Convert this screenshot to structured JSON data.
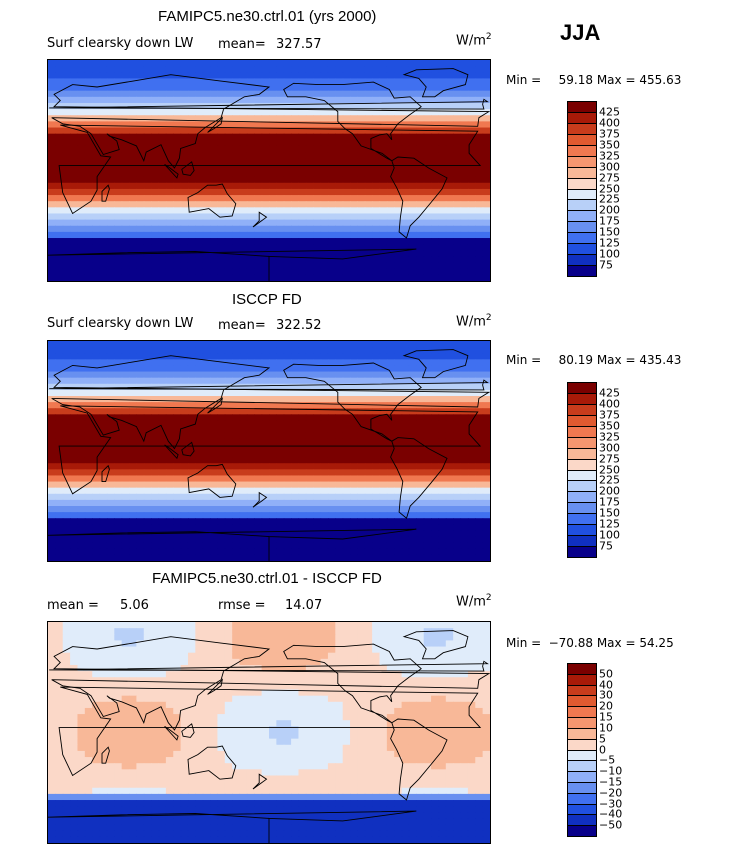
{
  "season": "JJA",
  "units": {
    "base": "W/m",
    "exp": "2"
  },
  "colors": {
    "positive_scale": [
      "#08008a",
      "#1030c0",
      "#2050e0",
      "#4070f0",
      "#6890f0",
      "#90b0f8",
      "#b8d0f8",
      "#e0ecfa",
      "#fbd8c8",
      "#f8b898",
      "#f59670",
      "#f07850",
      "#e05a30",
      "#c83c1c",
      "#a81a08",
      "#7a0000"
    ],
    "diff_scale": [
      "#08008a",
      "#1030c0",
      "#2050e0",
      "#4070f0",
      "#6890f0",
      "#90b0f8",
      "#b8d0f8",
      "#e0ecfa",
      "#fbd8c8",
      "#f8b898",
      "#f59670",
      "#f07850",
      "#e05a30",
      "#c83c1c",
      "#a81a08",
      "#7a0000"
    ],
    "land_line": "#000000"
  },
  "chart_data": [
    {
      "type": "heatmap",
      "title": "FAMIPC5.ne30.ctrl.01 (yrs 2000)",
      "variable": "Surf clearsky down LW",
      "stat_label": "mean=",
      "stat_value": "327.57",
      "min_label": "Min =",
      "min": "59.18",
      "max_label": "Max =",
      "max": "455.63",
      "levels": [
        75,
        100,
        125,
        150,
        175,
        200,
        225,
        250,
        275,
        300,
        325,
        350,
        375,
        400,
        425
      ],
      "levels_text": [
        "75",
        "100",
        "125",
        "150",
        "175",
        "200",
        "225",
        "250",
        "275",
        "300",
        "325",
        "350",
        "375",
        "400",
        "425"
      ]
    },
    {
      "type": "heatmap",
      "title": "ISCCP FD",
      "variable": "Surf clearsky down LW",
      "stat_label": "mean=",
      "stat_value": "322.52",
      "min_label": "Min =",
      "min": "80.19",
      "max_label": "Max =",
      "max": "435.43",
      "levels": [
        75,
        100,
        125,
        150,
        175,
        200,
        225,
        250,
        275,
        300,
        325,
        350,
        375,
        400,
        425
      ],
      "levels_text": [
        "75",
        "100",
        "125",
        "150",
        "175",
        "200",
        "225",
        "250",
        "275",
        "300",
        "325",
        "350",
        "375",
        "400",
        "425"
      ]
    },
    {
      "type": "heatmap",
      "title": "FAMIPC5.ne30.ctrl.01 - ISCCP FD",
      "mean_label": "mean =",
      "mean_value": "5.06",
      "rmse_label": "rmse =",
      "rmse_value": "14.07",
      "min_label": "Min =",
      "min": "−70.88",
      "max_label": "Max =",
      "max": "54.25",
      "levels": [
        -50,
        -40,
        -30,
        -20,
        -15,
        -10,
        -5,
        0,
        5,
        10,
        15,
        20,
        30,
        40,
        50
      ],
      "levels_text": [
        "−50",
        "−40",
        "−30",
        "−20",
        "−15",
        "−10",
        "−5",
        "0",
        "5",
        "10",
        "15",
        "20",
        "30",
        "40",
        "50"
      ]
    }
  ]
}
